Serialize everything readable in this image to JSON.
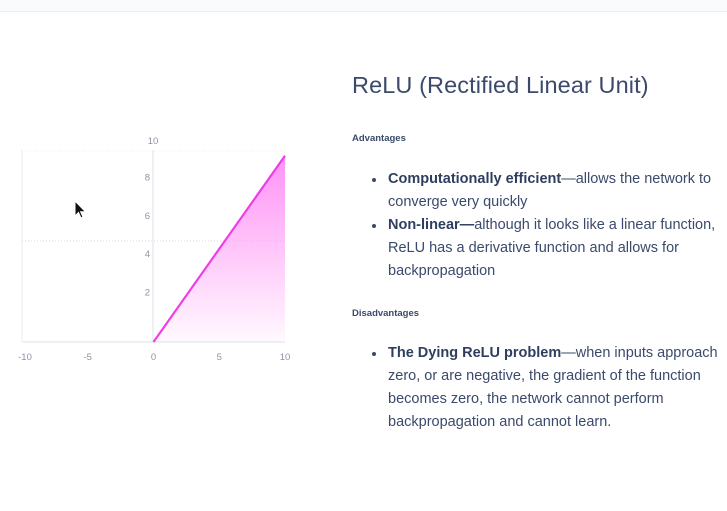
{
  "title": "ReLU (Rectified Linear Unit)",
  "advantages": {
    "heading": "Advantages",
    "items": [
      {
        "bold": "Computationally efficient",
        "text": "—allows the network to converge very quickly"
      },
      {
        "bold": "Non-linear—",
        "text": "although it looks like a linear function, ReLU has a derivative function and allows for backpropagation"
      }
    ]
  },
  "disadvantages": {
    "heading": "Disadvantages",
    "items": [
      {
        "bold": "The Dying ReLU problem",
        "text": "—when inputs approach zero, or are negative, the gradient of the function becomes zero, the network cannot perform backpropagation and cannot learn."
      }
    ]
  },
  "chart_data": {
    "type": "line",
    "series": [
      {
        "x": [
          -10,
          0,
          10
        ],
        "y": [
          0,
          0,
          10
        ]
      }
    ],
    "xlim": [
      -10,
      10
    ],
    "ylim": [
      0,
      10
    ],
    "x_ticks": [
      "-10",
      "-5",
      "0",
      "5",
      "10"
    ],
    "y_ticks": [
      "2",
      "4",
      "6",
      "8",
      "10"
    ],
    "fill_under": true,
    "line_color": "#ee3ee6",
    "fill_color": "#ff8cf5",
    "grid": "dashed"
  }
}
